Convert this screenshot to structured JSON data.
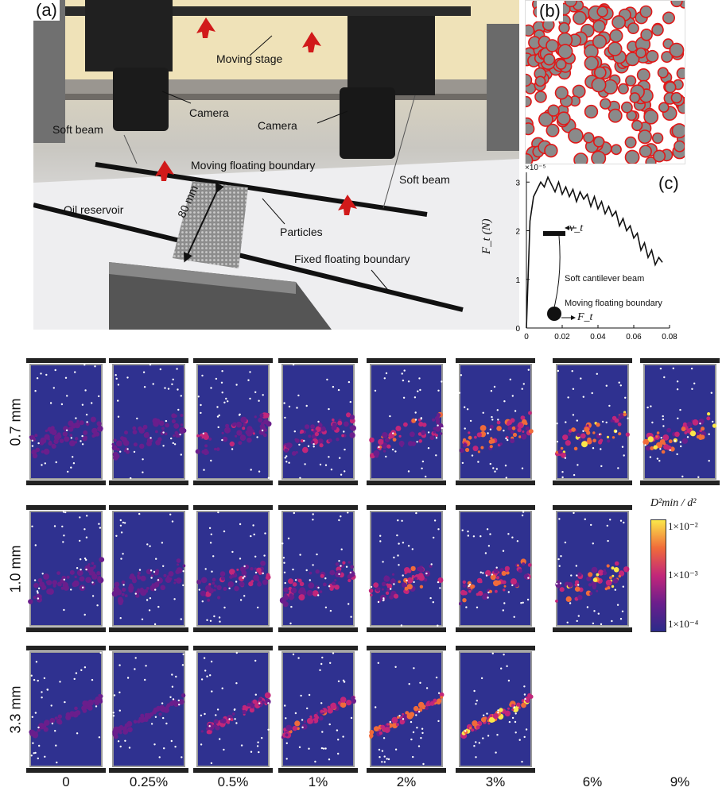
{
  "panel_a": {
    "letter": "(a)",
    "labels": {
      "moving_stage": "Moving stage",
      "camera_left": "Camera",
      "camera_right": "Camera",
      "soft_beam_left": "Soft beam",
      "soft_beam_right": "Soft beam",
      "moving_boundary": "Moving floating boundary",
      "oil_reservoir": "Oil reservoir",
      "length": "80 mm",
      "particles": "Particles",
      "fixed_boundary": "Fixed floating boundary"
    }
  },
  "panel_b": {
    "letter": "(b)"
  },
  "panel_c": {
    "letter": "(c)",
    "ylabel": "F_t (N)",
    "scale": "×10⁻⁵",
    "annot_beam": "Soft cantilever beam",
    "annot_boundary": "Moving floating boundary",
    "vt": "v_t",
    "ft": "F_t"
  },
  "chart_data": {
    "type": "line",
    "xlabel": "",
    "ylabel": "F_t (N)",
    "y_scale_note": "×10⁻⁵",
    "xlim": [
      0,
      0.08
    ],
    "ylim": [
      0,
      3.2
    ],
    "xticks": [
      "0",
      "0.02",
      "0.04",
      "0.06",
      "0.08"
    ],
    "yticks": [
      "0",
      "1",
      "2",
      "3"
    ],
    "x": [
      0,
      0.002,
      0.004,
      0.006,
      0.008,
      0.01,
      0.012,
      0.014,
      0.016,
      0.018,
      0.02,
      0.022,
      0.024,
      0.026,
      0.028,
      0.03,
      0.032,
      0.034,
      0.036,
      0.038,
      0.04,
      0.042,
      0.044,
      0.046,
      0.048,
      0.05,
      0.052,
      0.054,
      0.056,
      0.058,
      0.06,
      0.062,
      0.064,
      0.066,
      0.068,
      0.07,
      0.072,
      0.074,
      0.076
    ],
    "y": [
      0,
      2.2,
      2.7,
      2.85,
      3.0,
      2.9,
      3.1,
      2.95,
      2.8,
      3.0,
      2.75,
      2.9,
      2.7,
      2.85,
      2.6,
      2.8,
      2.65,
      2.75,
      2.5,
      2.7,
      2.45,
      2.6,
      2.35,
      2.5,
      2.3,
      2.4,
      2.1,
      2.25,
      2.0,
      2.1,
      1.85,
      1.95,
      1.6,
      1.75,
      1.45,
      1.6,
      1.3,
      1.45,
      1.35
    ]
  },
  "grid": {
    "rows": [
      "0.7 mm",
      "1.0 mm",
      "3.3 mm"
    ],
    "cols": [
      "0",
      "0.25%",
      "0.5%",
      "1%",
      "2%",
      "3%",
      "6%",
      "9%"
    ],
    "row_counts": [
      8,
      7,
      6
    ]
  },
  "colorbar": {
    "title": "D²min / d²",
    "top": "1×10⁻²",
    "mid": "1×10⁻³",
    "bottom": "1×10⁻⁴",
    "colors": [
      "#2b2b8a",
      "#6a1e8c",
      "#c2267a",
      "#f06b3a",
      "#fbe74a"
    ]
  }
}
